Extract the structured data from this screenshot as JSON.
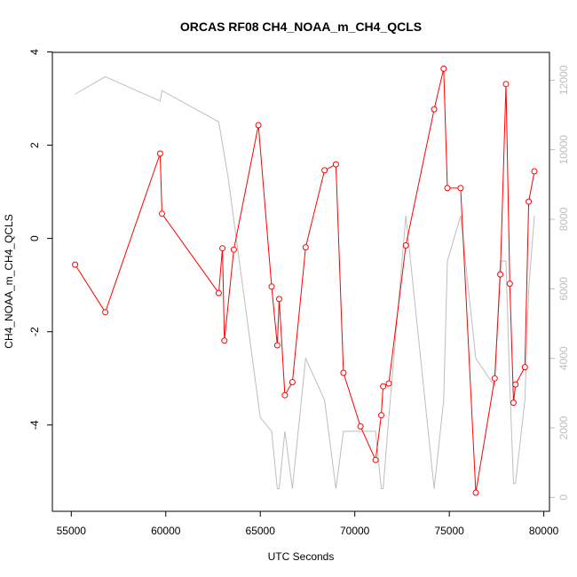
{
  "chart_data": {
    "type": "line",
    "title": "ORCAS RF08 CH4_NOAA_m_CH4_QCLS",
    "xlabel": "UTC Seconds",
    "ylabel": "CH4_NOAA_m_CH4_QCLS",
    "xlim": [
      54000,
      80300
    ],
    "ylim": [
      -5.85,
      3.99
    ],
    "y2lim": [
      -400,
      12800
    ],
    "x_ticks": [
      55000,
      60000,
      65000,
      70000,
      75000,
      80000
    ],
    "x_tick_labels": [
      "55000",
      "60000",
      "65000",
      "70000",
      "75000",
      "80000"
    ],
    "y_ticks": [
      4,
      2,
      0,
      -2,
      -4
    ],
    "y_tick_labels": [
      "4",
      "2",
      "0",
      "-2",
      "-4"
    ],
    "y2_ticks": [
      0,
      2000,
      4000,
      6000,
      8000,
      10000,
      12000
    ],
    "y2_tick_labels": [
      "0",
      "2000",
      "4000",
      "6000",
      "8000",
      "10000",
      "12000"
    ],
    "grid": false,
    "colors": {
      "primary": "#ff0000",
      "secondary": "#bebebe"
    },
    "series": [
      {
        "axis": "left",
        "style": "line+open-circle",
        "x": [
          55200,
          56800,
          59700,
          59800,
          62800,
          63000,
          63100,
          63600,
          64900,
          65600,
          65900,
          66000,
          66300,
          66700,
          67400,
          68400,
          69000,
          69400,
          70300,
          71100,
          71400,
          71500,
          71800,
          72700,
          74200,
          74700,
          74900,
          75600,
          76400,
          77400,
          77700,
          78000,
          78200,
          78400,
          78500,
          79000,
          79200,
          79500
        ],
        "y": [
          -0.56,
          -1.58,
          1.82,
          0.53,
          -1.17,
          -0.21,
          -2.19,
          -0.24,
          2.43,
          -1.03,
          -2.29,
          -1.3,
          -3.36,
          -3.08,
          -0.19,
          1.46,
          1.59,
          -2.88,
          -4.03,
          -4.75,
          -3.79,
          -3.17,
          -3.11,
          -0.15,
          2.77,
          3.64,
          1.08,
          1.08,
          -5.45,
          -3.0,
          -0.77,
          3.31,
          -0.97,
          -3.52,
          -3.13,
          -2.76,
          0.79,
          1.44
        ]
      },
      {
        "axis": "right",
        "style": "line",
        "x": [
          55200,
          56800,
          59700,
          59800,
          62800,
          63300,
          65000,
          65600,
          65900,
          66000,
          66300,
          66700,
          67400,
          68400,
          69000,
          69400,
          70300,
          71100,
          71400,
          71500,
          71800,
          72700,
          74200,
          74700,
          74900,
          75600,
          76400,
          77400,
          77700,
          78000,
          78200,
          78400,
          78500,
          79000,
          79200,
          79500
        ],
        "y": [
          11600,
          12100,
          11400,
          11700,
          10800,
          9200,
          2300,
          1900,
          250,
          250,
          1900,
          250,
          4000,
          2800,
          250,
          1900,
          1900,
          1900,
          250,
          250,
          2300,
          8100,
          250,
          2800,
          6800,
          8100,
          4000,
          3200,
          6800,
          6800,
          3200,
          400,
          400,
          2800,
          6000,
          8100
        ]
      }
    ]
  }
}
